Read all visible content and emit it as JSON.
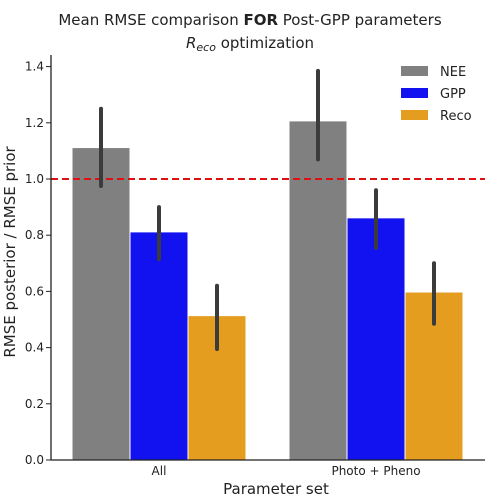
{
  "chart_data": {
    "type": "bar",
    "title_line1_pre": "Mean RMSE comparison ",
    "title_line1_bold": "FOR",
    "title_line1_post": " Post-GPP parameters",
    "title_line2_main": "R",
    "title_line2_sub": "eco",
    "title_line2_rest": " optimization",
    "xlabel": "Parameter set",
    "ylabel": "RMSE posterior / RMSE prior",
    "categories": [
      "All",
      "Photo + Pheno"
    ],
    "series": [
      {
        "name": "NEE",
        "color": "#808080",
        "values": [
          1.11,
          1.205
        ],
        "ci": [
          [
            0.975,
            1.25
          ],
          [
            1.07,
            1.385
          ]
        ]
      },
      {
        "name": "GPP",
        "color": "#1212f0",
        "values": [
          0.81,
          0.86
        ],
        "ci": [
          [
            0.715,
            0.9
          ],
          [
            0.755,
            0.96
          ]
        ]
      },
      {
        "name": "Reco",
        "color": "#e59d1f",
        "values": [
          0.512,
          0.596
        ],
        "ci": [
          [
            0.395,
            0.62
          ],
          [
            0.485,
            0.7
          ]
        ]
      }
    ],
    "yticks": [
      "0.0",
      "0.2",
      "0.4",
      "0.6",
      "0.8",
      "1.0",
      "1.2",
      "1.4"
    ],
    "ylim": [
      0,
      1.45
    ],
    "reference_line": {
      "y": 1.0,
      "color": "#dd1111",
      "style": "dashed"
    },
    "legend_placement": "top-right",
    "grid": false
  }
}
